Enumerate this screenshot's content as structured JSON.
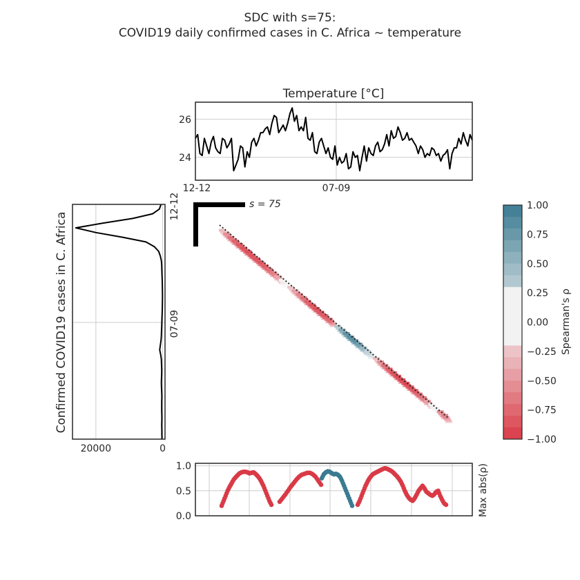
{
  "title": {
    "line1": "SDC with s=75:",
    "line2": "COVID19 daily confirmed cases in C. Africa ~ temperature"
  },
  "chart_data": [
    {
      "panel": "temperature",
      "type": "line",
      "title": "Temperature [°C]",
      "x_tick_labels": [
        "12-12",
        "07-09"
      ],
      "yticks": [
        24,
        26
      ],
      "ylim": [
        22.8,
        26.9
      ],
      "grid": true,
      "color": "#000000",
      "y": [
        25.0,
        25.2,
        24.2,
        24.1,
        25.0,
        24.6,
        24.2,
        24.8,
        25.1,
        24.5,
        24.3,
        24.2,
        25.0,
        24.9,
        24.5,
        24.7,
        25.0,
        23.3,
        23.6,
        23.9,
        24.6,
        24.5,
        23.5,
        24.3,
        24.0,
        24.8,
        25.0,
        24.6,
        24.9,
        25.3,
        25.3,
        25.5,
        25.6,
        25.2,
        25.8,
        26.2,
        26.1,
        25.3,
        25.5,
        25.7,
        25.4,
        25.8,
        26.3,
        26.6,
        25.9,
        26.2,
        25.4,
        25.6,
        25.4,
        26.1,
        25.0,
        24.9,
        25.3,
        24.3,
        24.2,
        24.8,
        25.0,
        24.6,
        24.2,
        24.5,
        24.0,
        23.9,
        24.6,
        23.6,
        24.0,
        23.7,
        23.8,
        24.2,
        23.4,
        23.5,
        24.3,
        24.0,
        24.1,
        23.3,
        24.0,
        24.6,
        23.8,
        24.5,
        24.2,
        24.1,
        24.6,
        24.8,
        24.3,
        24.4,
        24.7,
        25.2,
        24.6,
        25.4,
        25.0,
        25.1,
        25.6,
        25.3,
        24.9,
        25.0,
        25.3,
        24.9,
        25.0,
        24.8,
        24.6,
        24.2,
        24.6,
        24.4,
        24.0,
        24.2,
        24.1,
        24.5,
        24.4,
        24.1,
        24.2,
        23.8,
        24.1,
        24.2,
        24.4,
        23.4,
        24.2,
        24.5,
        24.5,
        25.0,
        24.7,
        25.3,
        24.9,
        24.6,
        25.2,
        24.9
      ]
    },
    {
      "panel": "cases",
      "type": "line",
      "ylabel": "Confirmed COVID19 cases in C. Africa",
      "xticks": [
        20000,
        0
      ],
      "x_tick_labels": [
        "20000",
        "0"
      ],
      "xlim": [
        27000,
        -700
      ],
      "y_tick_labels": [
        "12-12",
        "07-09"
      ],
      "orientation": "vertical",
      "grid": true,
      "color": "#000000",
      "values": [
        500,
        1000,
        3000,
        9000,
        18000,
        26000,
        20000,
        12000,
        5000,
        2500,
        1200,
        700,
        400,
        300,
        250,
        200,
        150,
        100,
        80,
        60,
        60,
        80,
        100,
        150,
        200,
        250,
        300,
        350,
        400,
        500,
        700,
        900,
        600,
        400,
        350,
        300,
        300,
        350,
        400,
        350,
        300,
        250,
        300,
        300,
        300,
        250,
        250,
        300,
        250,
        250,
        200
      ]
    },
    {
      "panel": "sdc_heatmap",
      "type": "heatmap",
      "label": "s = 75",
      "colorbar_label": "Spearman's ρ",
      "colorbar_ticks": [
        1.0,
        0.75,
        0.5,
        0.25,
        0.0,
        -0.25,
        -0.5,
        -0.75,
        -1.0
      ],
      "colorbar_tick_labels": [
        "1.00",
        "0.75",
        "0.50",
        "0.25",
        "0.00",
        "−0.25",
        "−0.50",
        "−0.75",
        "−1.00"
      ],
      "vlim": [
        -1,
        1
      ],
      "cmap": {
        "negative": "#d93a46",
        "neutral": "#f2f2f2",
        "positive": "#3b7b91"
      },
      "rho": [
        -0.3,
        -0.55,
        -0.7,
        -0.78,
        -0.83,
        -0.86,
        -0.88,
        -0.87,
        -0.86,
        -0.84,
        -0.8,
        -0.73,
        -0.62,
        -0.42,
        -0.1,
        0.0,
        -0.25,
        -0.45,
        -0.6,
        -0.72,
        -0.8,
        -0.86,
        -0.88,
        -0.86,
        -0.82,
        -0.75,
        0.0,
        0.35,
        0.62,
        0.8,
        0.86,
        0.82,
        0.7,
        0.5,
        0.25,
        0.0,
        -0.3,
        -0.55,
        -0.72,
        -0.82,
        -0.88,
        -0.92,
        -0.94,
        -0.93,
        -0.9,
        -0.85,
        -0.78,
        -0.65,
        -0.45,
        0.1,
        0.2,
        -0.55,
        -0.6
      ]
    },
    {
      "panel": "max_abs_rho",
      "type": "scatter",
      "ylabel": "Max abs(ρ)",
      "yticks": [
        0.0,
        0.5,
        1.0
      ],
      "y_tick_labels": [
        "0.0",
        "0.5",
        "1.0"
      ],
      "ylim": [
        0.0,
        1.05
      ],
      "grid": true,
      "colors": {
        "negative": "#d93a46",
        "positive": "#3b7b91"
      },
      "segments": [
        {
          "sign": "negative",
          "y": [
            0.2,
            0.3,
            0.4,
            0.5,
            0.58,
            0.65,
            0.72,
            0.77,
            0.81,
            0.85,
            0.87,
            0.88,
            0.88,
            0.87,
            0.85,
            0.86,
            0.87,
            0.84,
            0.8,
            0.75,
            0.68,
            0.6,
            0.5,
            0.4,
            0.3,
            0.22
          ]
        },
        {
          "sign": "negative",
          "y": [
            0.28,
            0.35,
            0.42,
            0.5,
            0.58,
            0.65,
            0.72,
            0.78,
            0.82,
            0.84,
            0.86,
            0.86,
            0.83,
            0.78,
            0.7,
            0.62
          ]
        },
        {
          "sign": "positive",
          "y": [
            0.75,
            0.83,
            0.87,
            0.89,
            0.88,
            0.85,
            0.83,
            0.84,
            0.82,
            0.78,
            0.7,
            0.6,
            0.5,
            0.4,
            0.3,
            0.2
          ]
        },
        {
          "sign": "negative",
          "y": [
            0.22,
            0.3,
            0.4,
            0.5,
            0.6,
            0.68,
            0.75,
            0.8,
            0.84,
            0.86,
            0.88,
            0.9,
            0.92,
            0.94,
            0.95,
            0.94,
            0.92,
            0.9,
            0.87,
            0.83,
            0.79,
            0.74,
            0.68,
            0.6,
            0.5,
            0.42,
            0.36,
            0.32,
            0.3,
            0.35,
            0.42,
            0.5,
            0.55,
            0.6,
            0.55,
            0.48,
            0.45,
            0.42,
            0.4,
            0.43,
            0.48,
            0.5,
            0.4,
            0.32,
            0.25,
            0.22
          ]
        }
      ]
    }
  ]
}
